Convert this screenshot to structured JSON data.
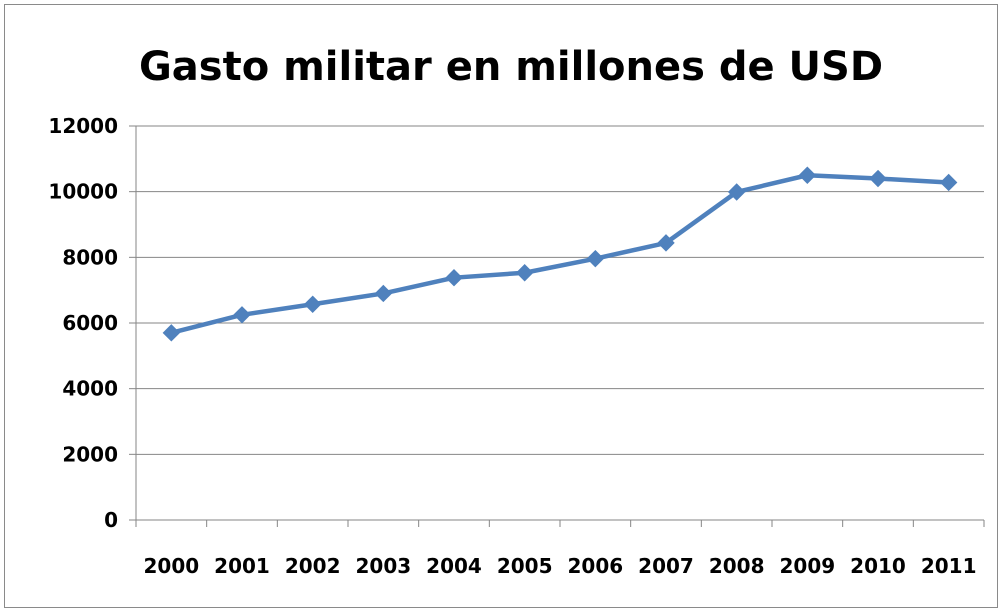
{
  "chart_data": {
    "type": "line",
    "title": "Gasto militar en millones de USD",
    "xlabel": "",
    "ylabel": "",
    "categories": [
      "2000",
      "2001",
      "2002",
      "2003",
      "2004",
      "2005",
      "2006",
      "2007",
      "2008",
      "2009",
      "2010",
      "2011"
    ],
    "series": [
      {
        "values": [
          5700,
          6250,
          6570,
          6900,
          7380,
          7530,
          7960,
          8440,
          9990,
          10500,
          10400,
          10280
        ],
        "color": "#4f81bd",
        "marker": "diamond"
      }
    ],
    "ylim": [
      0,
      12000
    ],
    "yticks": [
      "0",
      "2000",
      "4000",
      "6000",
      "8000",
      "10000",
      "12000"
    ],
    "grid": true,
    "legend": "none"
  }
}
